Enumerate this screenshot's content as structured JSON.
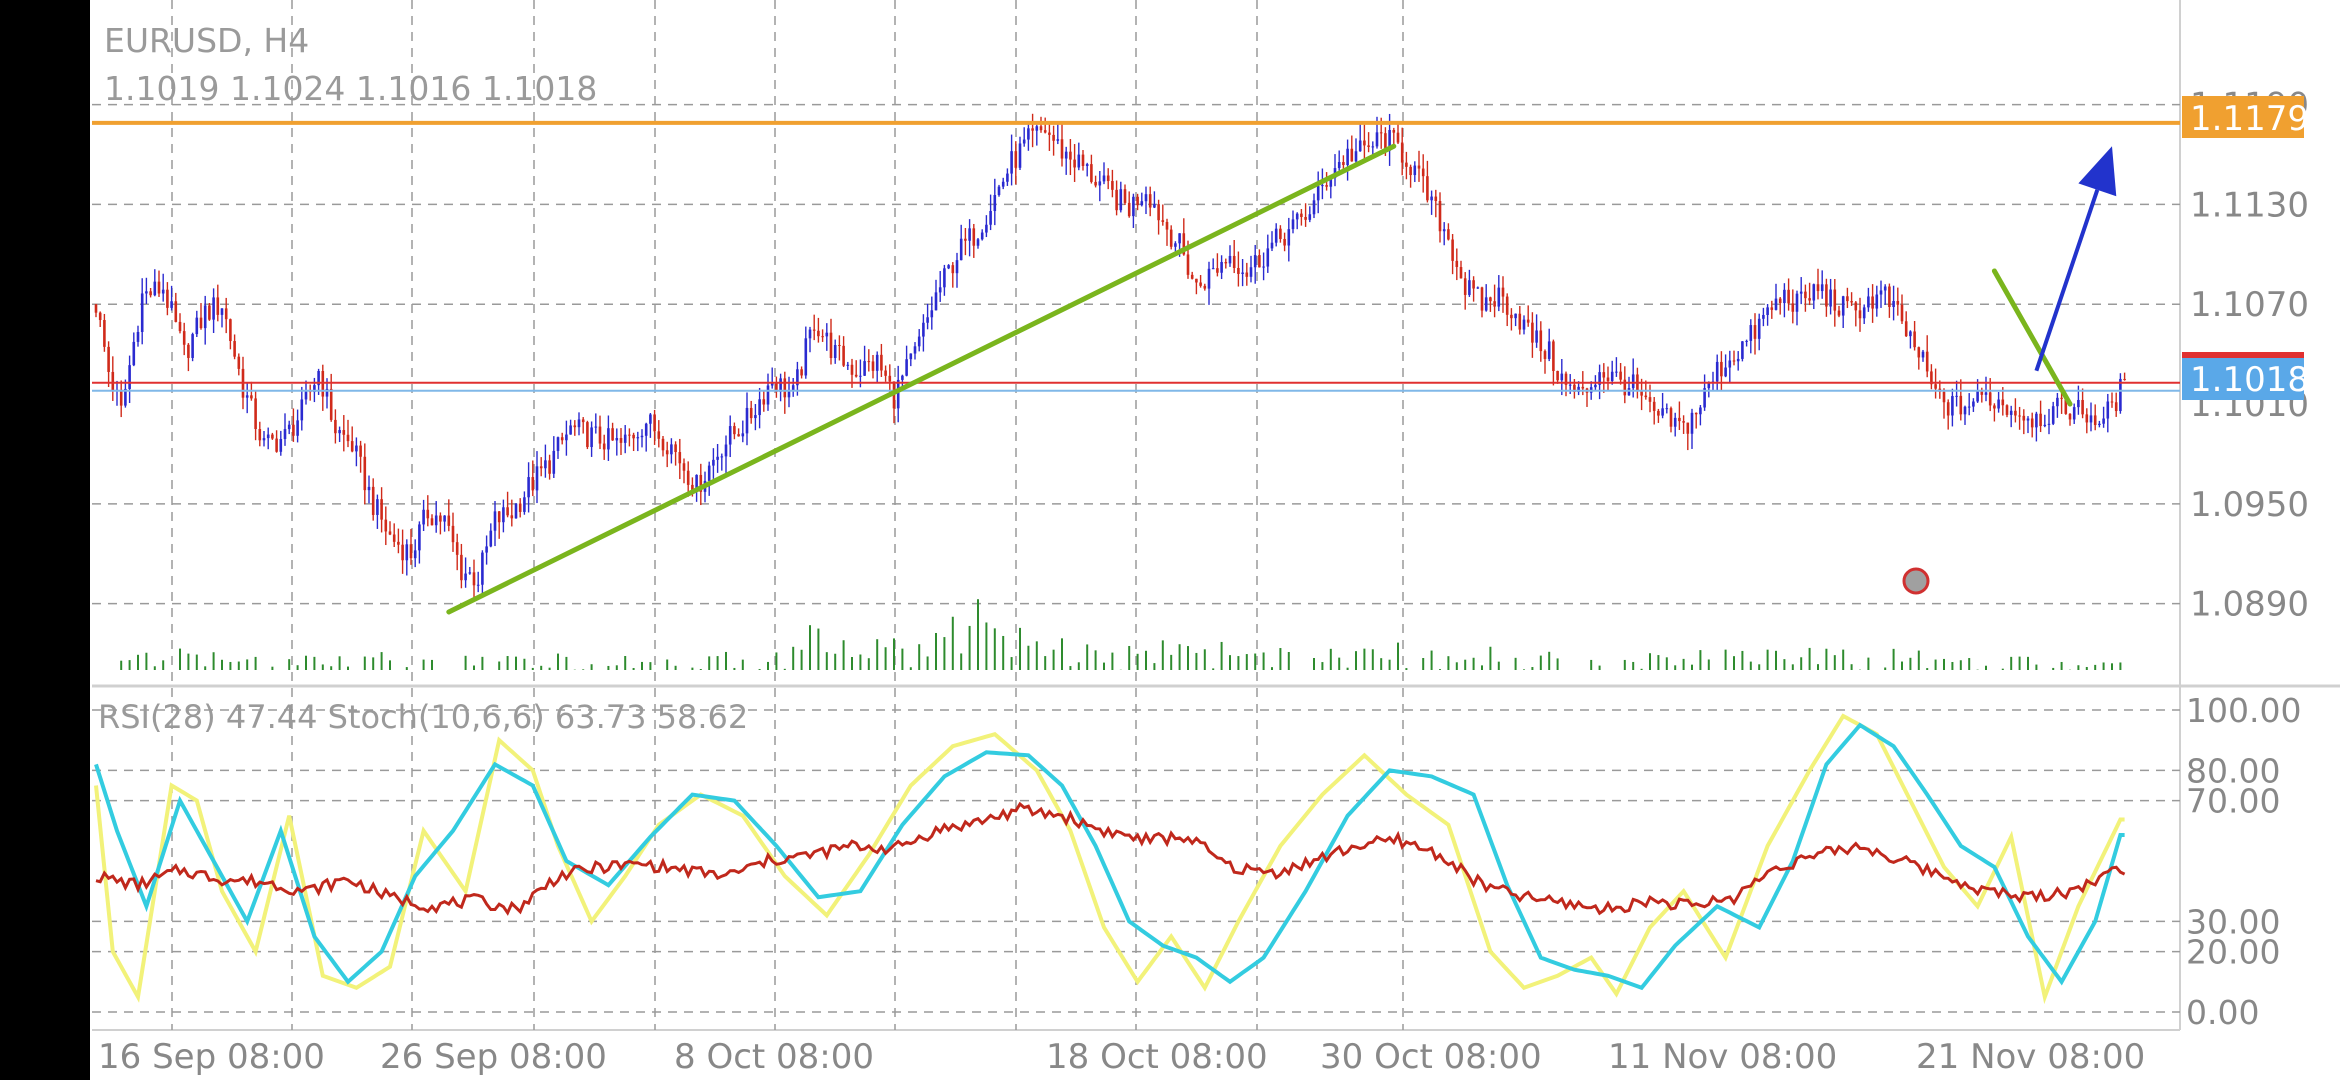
{
  "header": {
    "symbol_timeframe": "EURUSD, H4",
    "ohlc": "1.1019 1.1024 1.1016 1.1018"
  },
  "colors": {
    "background": "#ffffff",
    "grid": "#9a9a9a",
    "bull_candle": "#2a2ad0",
    "bear_candle": "#d02a1a",
    "volume": "#2e8b2e",
    "resistance_line": "#f0a030",
    "current_price_line": "#e03030",
    "bid_line": "#80b8e8",
    "trendline": "#7ab51d",
    "arrow": "#2233cc",
    "rsi": "#c0281c",
    "stoch_main": "#33cce0",
    "stoch_signal": "#f2f27a",
    "price_label_orange": "#f0a030",
    "price_label_blue": "#5aa8e8",
    "axis_text": "#888888"
  },
  "price_axis": {
    "ticks": [
      "1.1190",
      "1.1130",
      "1.1070",
      "1.0950",
      "1.0890"
    ],
    "tick_values": [
      1.119,
      1.113,
      1.107,
      1.095,
      1.089
    ],
    "resistance_label": "1.1179",
    "resistance_value": 1.1179,
    "current_label": "1.1018",
    "current_value": 1.1018,
    "hidden_tick_value": 1.101,
    "hidden_tick_label": "1.1010"
  },
  "time_axis": {
    "labels": [
      "16 Sep 08:00",
      "26 Sep 08:00",
      "8 Oct 08:00",
      "18 Oct 08:00",
      "30 Oct 08:00",
      "11 Nov 08:00",
      "21 Nov 08:00"
    ]
  },
  "indicator": {
    "title": "RSI(28) 47.44 Stoch(10,6,6) 63.73 58.62",
    "levels": [
      "100.00",
      "80.00",
      "70.00",
      "30.00",
      "20.00",
      "0.00"
    ],
    "level_values": [
      100,
      80,
      70,
      30,
      20,
      0
    ]
  },
  "chart_data": {
    "type": "candlestick",
    "symbol": "EURUSD",
    "timeframe": "H4",
    "ylim": [
      1.086,
      1.12
    ],
    "close_path": [
      [
        0,
        1.107
      ],
      [
        3,
        1.103
      ],
      [
        6,
        1.1005
      ],
      [
        11,
        1.1075
      ],
      [
        16,
        1.108
      ],
      [
        21,
        1.104
      ],
      [
        26,
        1.1065
      ],
      [
        30,
        1.107
      ],
      [
        35,
        1.102
      ],
      [
        40,
        1.0985
      ],
      [
        45,
        1.099
      ],
      [
        49,
        1.1005
      ],
      [
        53,
        1.103
      ],
      [
        57,
        1.0995
      ],
      [
        61,
        1.0985
      ],
      [
        66,
        1.095
      ],
      [
        70,
        1.093
      ],
      [
        75,
        1.092
      ],
      [
        79,
        1.0945
      ],
      [
        83,
        1.094
      ],
      [
        87,
        1.091
      ],
      [
        91,
        1.0905
      ],
      [
        95,
        1.094
      ],
      [
        99,
        1.0945
      ],
      [
        103,
        1.096
      ],
      [
        108,
        1.0975
      ],
      [
        113,
        1.0995
      ],
      [
        119,
        1.099
      ],
      [
        125,
        1.0985
      ],
      [
        131,
        1.1
      ],
      [
        137,
        1.0985
      ],
      [
        143,
        1.096
      ],
      [
        149,
        1.0985
      ],
      [
        155,
        1.1
      ],
      [
        161,
        1.1025
      ],
      [
        166,
        1.1015
      ],
      [
        171,
        1.106
      ],
      [
        176,
        1.104
      ],
      [
        181,
        1.103
      ],
      [
        186,
        1.1035
      ],
      [
        190,
        1.1015
      ],
      [
        195,
        1.104
      ],
      [
        200,
        1.1075
      ],
      [
        205,
        1.11
      ],
      [
        210,
        1.1115
      ],
      [
        214,
        1.1135
      ],
      [
        218,
        1.1155
      ],
      [
        222,
        1.1168
      ],
      [
        226,
        1.1175
      ],
      [
        230,
        1.1162
      ],
      [
        234,
        1.1155
      ],
      [
        238,
        1.1145
      ],
      [
        242,
        1.1135
      ],
      [
        246,
        1.1128
      ],
      [
        250,
        1.114
      ],
      [
        254,
        1.112
      ],
      [
        258,
        1.1105
      ],
      [
        262,
        1.108
      ],
      [
        266,
        1.109
      ],
      [
        270,
        1.11
      ],
      [
        274,
        1.109
      ],
      [
        278,
        1.11
      ],
      [
        282,
        1.111
      ],
      [
        286,
        1.1118
      ],
      [
        290,
        1.113
      ],
      [
        294,
        1.115
      ],
      [
        298,
        1.116
      ],
      [
        302,
        1.1162
      ],
      [
        306,
        1.117
      ],
      [
        310,
        1.1165
      ],
      [
        314,
        1.115
      ],
      [
        318,
        1.113
      ],
      [
        322,
        1.111
      ],
      [
        326,
        1.108
      ],
      [
        330,
        1.107
      ],
      [
        334,
        1.1075
      ],
      [
        338,
        1.1065
      ],
      [
        342,
        1.105
      ],
      [
        346,
        1.104
      ],
      [
        350,
        1.102
      ],
      [
        354,
        1.1015
      ],
      [
        358,
        1.103
      ],
      [
        362,
        1.1025
      ],
      [
        366,
        1.102
      ],
      [
        370,
        1.1005
      ],
      [
        374,
        1.1
      ],
      [
        378,
        1.0995
      ],
      [
        382,
        1.101
      ],
      [
        386,
        1.103
      ],
      [
        390,
        1.104
      ],
      [
        394,
        1.105
      ],
      [
        398,
        1.1065
      ],
      [
        402,
        1.1075
      ],
      [
        406,
        1.107
      ],
      [
        410,
        1.108
      ],
      [
        414,
        1.107
      ],
      [
        418,
        1.1065
      ],
      [
        422,
        1.1072
      ],
      [
        426,
        1.1075
      ],
      [
        430,
        1.1058
      ],
      [
        434,
        1.104
      ],
      [
        438,
        1.1015
      ],
      [
        442,
        1.1008
      ],
      [
        446,
        1.101
      ],
      [
        450,
        1.1015
      ],
      [
        454,
        1.101
      ],
      [
        458,
        1.1005
      ],
      [
        462,
        1.1002
      ],
      [
        466,
        1.1005
      ],
      [
        470,
        1.1008
      ],
      [
        474,
        1.1004
      ],
      [
        478,
        1.1
      ],
      [
        482,
        1.1018
      ]
    ],
    "volume_path": [
      [
        0,
        3
      ],
      [
        20,
        4
      ],
      [
        40,
        3
      ],
      [
        60,
        4
      ],
      [
        80,
        3
      ],
      [
        100,
        4
      ],
      [
        120,
        4
      ],
      [
        140,
        3
      ],
      [
        160,
        4
      ],
      [
        170,
        7
      ],
      [
        180,
        5
      ],
      [
        200,
        6
      ],
      [
        210,
        9
      ],
      [
        220,
        6
      ],
      [
        240,
        4
      ],
      [
        260,
        5
      ],
      [
        280,
        4
      ],
      [
        300,
        4
      ],
      [
        320,
        5
      ],
      [
        340,
        4
      ],
      [
        360,
        3
      ],
      [
        380,
        4
      ],
      [
        400,
        4
      ],
      [
        420,
        4
      ],
      [
        440,
        4
      ],
      [
        460,
        3
      ],
      [
        482,
        3
      ]
    ],
    "rsi_path": [
      [
        0,
        45
      ],
      [
        10,
        42
      ],
      [
        20,
        47
      ],
      [
        30,
        44
      ],
      [
        40,
        43
      ],
      [
        50,
        40
      ],
      [
        60,
        44
      ],
      [
        70,
        38
      ],
      [
        80,
        35
      ],
      [
        90,
        37
      ],
      [
        100,
        34
      ],
      [
        110,
        45
      ],
      [
        120,
        48
      ],
      [
        130,
        49
      ],
      [
        140,
        47
      ],
      [
        150,
        45
      ],
      [
        160,
        50
      ],
      [
        170,
        52
      ],
      [
        180,
        55
      ],
      [
        190,
        54
      ],
      [
        200,
        60
      ],
      [
        210,
        63
      ],
      [
        220,
        67
      ],
      [
        230,
        65
      ],
      [
        240,
        60
      ],
      [
        250,
        57
      ],
      [
        260,
        58
      ],
      [
        270,
        48
      ],
      [
        280,
        46
      ],
      [
        290,
        50
      ],
      [
        300,
        55
      ],
      [
        310,
        57
      ],
      [
        320,
        52
      ],
      [
        330,
        42
      ],
      [
        340,
        38
      ],
      [
        350,
        36
      ],
      [
        360,
        34
      ],
      [
        370,
        37
      ],
      [
        380,
        35
      ],
      [
        390,
        38
      ],
      [
        400,
        48
      ],
      [
        410,
        52
      ],
      [
        420,
        55
      ],
      [
        430,
        50
      ],
      [
        440,
        45
      ],
      [
        450,
        40
      ],
      [
        460,
        38
      ],
      [
        470,
        40
      ],
      [
        482,
        47.44
      ]
    ],
    "stoch_main_path": [
      [
        0,
        82
      ],
      [
        5,
        60
      ],
      [
        12,
        35
      ],
      [
        20,
        70
      ],
      [
        28,
        50
      ],
      [
        36,
        30
      ],
      [
        44,
        60
      ],
      [
        52,
        25
      ],
      [
        60,
        10
      ],
      [
        68,
        20
      ],
      [
        76,
        45
      ],
      [
        85,
        60
      ],
      [
        95,
        82
      ],
      [
        104,
        75
      ],
      [
        112,
        50
      ],
      [
        122,
        42
      ],
      [
        132,
        58
      ],
      [
        142,
        72
      ],
      [
        152,
        70
      ],
      [
        162,
        55
      ],
      [
        172,
        38
      ],
      [
        182,
        40
      ],
      [
        192,
        62
      ],
      [
        202,
        78
      ],
      [
        212,
        86
      ],
      [
        222,
        85
      ],
      [
        230,
        75
      ],
      [
        238,
        55
      ],
      [
        246,
        30
      ],
      [
        254,
        22
      ],
      [
        262,
        18
      ],
      [
        270,
        10
      ],
      [
        278,
        18
      ],
      [
        288,
        40
      ],
      [
        298,
        65
      ],
      [
        308,
        80
      ],
      [
        318,
        78
      ],
      [
        328,
        72
      ],
      [
        336,
        42
      ],
      [
        344,
        18
      ],
      [
        352,
        14
      ],
      [
        360,
        12
      ],
      [
        368,
        8
      ],
      [
        376,
        22
      ],
      [
        386,
        35
      ],
      [
        396,
        28
      ],
      [
        404,
        50
      ],
      [
        412,
        82
      ],
      [
        420,
        95
      ],
      [
        428,
        88
      ],
      [
        436,
        72
      ],
      [
        444,
        55
      ],
      [
        452,
        48
      ],
      [
        460,
        25
      ],
      [
        468,
        10
      ],
      [
        476,
        30
      ],
      [
        482,
        58.62
      ]
    ],
    "stoch_signal_path": [
      [
        0,
        75
      ],
      [
        4,
        20
      ],
      [
        10,
        5
      ],
      [
        18,
        75
      ],
      [
        24,
        70
      ],
      [
        30,
        40
      ],
      [
        38,
        20
      ],
      [
        46,
        65
      ],
      [
        54,
        12
      ],
      [
        62,
        8
      ],
      [
        70,
        15
      ],
      [
        78,
        60
      ],
      [
        88,
        40
      ],
      [
        96,
        90
      ],
      [
        104,
        80
      ],
      [
        110,
        55
      ],
      [
        118,
        30
      ],
      [
        126,
        45
      ],
      [
        134,
        62
      ],
      [
        144,
        72
      ],
      [
        154,
        65
      ],
      [
        164,
        45
      ],
      [
        174,
        32
      ],
      [
        184,
        52
      ],
      [
        194,
        75
      ],
      [
        204,
        88
      ],
      [
        214,
        92
      ],
      [
        224,
        80
      ],
      [
        232,
        60
      ],
      [
        240,
        28
      ],
      [
        248,
        10
      ],
      [
        256,
        25
      ],
      [
        264,
        8
      ],
      [
        272,
        30
      ],
      [
        282,
        55
      ],
      [
        292,
        72
      ],
      [
        302,
        85
      ],
      [
        312,
        72
      ],
      [
        322,
        62
      ],
      [
        332,
        20
      ],
      [
        340,
        8
      ],
      [
        348,
        12
      ],
      [
        356,
        18
      ],
      [
        362,
        6
      ],
      [
        370,
        28
      ],
      [
        378,
        40
      ],
      [
        388,
        18
      ],
      [
        398,
        55
      ],
      [
        408,
        80
      ],
      [
        416,
        98
      ],
      [
        424,
        92
      ],
      [
        432,
        70
      ],
      [
        440,
        48
      ],
      [
        448,
        35
      ],
      [
        456,
        58
      ],
      [
        464,
        5
      ],
      [
        472,
        35
      ],
      [
        482,
        63.73
      ]
    ],
    "drawn_objects": {
      "resistance_level": 1.1179,
      "rising_trendline": [
        [
          84,
          1.0885
        ],
        [
          309,
          1.1165
        ]
      ],
      "falling_trendline": [
        [
          452,
          1.109
        ],
        [
          470,
          1.101
        ]
      ],
      "projection_arrow": [
        [
          462,
          1.103
        ],
        [
          480,
          1.1165
        ]
      ]
    }
  }
}
